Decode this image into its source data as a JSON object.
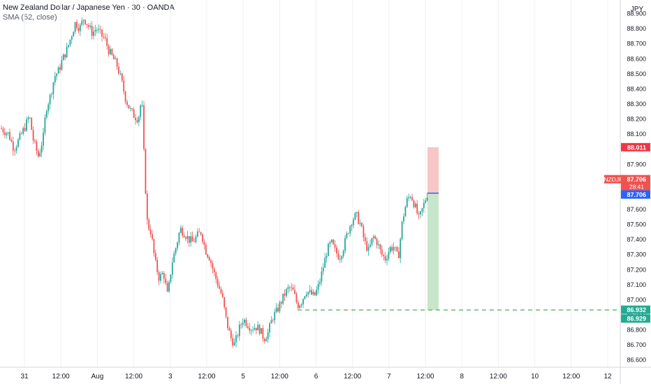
{
  "header": {
    "title": "New Zealand Dollar / Japanese Yen · 30 · OANDA",
    "indicator": "SMA (52, close)"
  },
  "chart_data": {
    "type": "candlestick",
    "currency": "JPY",
    "symbol": "NZDJPY",
    "ylim": [
      86.55,
      88.97
    ],
    "y_ticks": [
      "88.900",
      "88.800",
      "88.700",
      "88.600",
      "88.500",
      "88.400",
      "88.300",
      "88.200",
      "88.100",
      "88.000",
      "87.900",
      "87.800",
      "87.700",
      "87.600",
      "87.500",
      "87.400",
      "87.300",
      "87.200",
      "87.100",
      "87.000",
      "86.900",
      "86.800",
      "86.700",
      "86.600"
    ],
    "x_ticks": [
      "31",
      "12:00",
      "Aug",
      "12:00",
      "3",
      "12:00",
      "5",
      "12:00",
      "6",
      "12:00",
      "7",
      "12:00",
      "8",
      "12:00",
      "10",
      "12:00",
      "12"
    ],
    "price_labels": {
      "last": "87.706",
      "countdown": "28:41",
      "entry": "87.706",
      "stop": "88.011",
      "target_a": "86.932",
      "target_b": "86.929"
    },
    "position": {
      "entry": 87.706,
      "stop": 88.011,
      "target": 86.93,
      "type": "short"
    },
    "colors": {
      "up": "#26a69a",
      "down": "#ef5350",
      "stop_fill": "#f7c6c5",
      "target_fill": "#c8e6c9",
      "entry_line": "#2962ff",
      "target_line": "#4caf50",
      "last_label": "#ef5350"
    },
    "path": [
      [
        0,
        88.14
      ],
      [
        12,
        88.1
      ],
      [
        20,
        88.0
      ],
      [
        28,
        88.07
      ],
      [
        36,
        88.15
      ],
      [
        42,
        88.22
      ],
      [
        48,
        88.05
      ],
      [
        55,
        87.95
      ],
      [
        62,
        88.08
      ],
      [
        66,
        88.27
      ],
      [
        72,
        88.35
      ],
      [
        78,
        88.48
      ],
      [
        84,
        88.52
      ],
      [
        90,
        88.6
      ],
      [
        96,
        88.66
      ],
      [
        102,
        88.75
      ],
      [
        108,
        88.84
      ],
      [
        114,
        88.8
      ],
      [
        120,
        88.87
      ],
      [
        126,
        88.82
      ],
      [
        132,
        88.77
      ],
      [
        138,
        88.8
      ],
      [
        144,
        88.76
      ],
      [
        150,
        88.73
      ],
      [
        156,
        88.65
      ],
      [
        162,
        88.6
      ],
      [
        168,
        88.55
      ],
      [
        174,
        88.45
      ],
      [
        180,
        88.33
      ],
      [
        186,
        88.26
      ],
      [
        192,
        88.22
      ],
      [
        198,
        88.2
      ],
      [
        203,
        88.34
      ],
      [
        207,
        87.85
      ],
      [
        211,
        87.5
      ],
      [
        216,
        87.45
      ],
      [
        222,
        87.25
      ],
      [
        228,
        87.14
      ],
      [
        234,
        87.18
      ],
      [
        240,
        87.02
      ],
      [
        246,
        87.24
      ],
      [
        252,
        87.35
      ],
      [
        258,
        87.47
      ],
      [
        264,
        87.44
      ],
      [
        270,
        87.4
      ],
      [
        276,
        87.38
      ],
      [
        282,
        87.42
      ],
      [
        288,
        87.45
      ],
      [
        294,
        87.33
      ],
      [
        300,
        87.28
      ],
      [
        306,
        87.18
      ],
      [
        312,
        87.1
      ],
      [
        318,
        87.02
      ],
      [
        324,
        86.86
      ],
      [
        330,
        86.75
      ],
      [
        336,
        86.7
      ],
      [
        342,
        86.8
      ],
      [
        348,
        86.87
      ],
      [
        354,
        86.84
      ],
      [
        360,
        86.81
      ],
      [
        366,
        86.82
      ],
      [
        372,
        86.8
      ],
      [
        378,
        86.74
      ],
      [
        384,
        86.78
      ],
      [
        390,
        86.88
      ],
      [
        396,
        86.92
      ],
      [
        402,
        86.98
      ],
      [
        408,
        87.04
      ],
      [
        414,
        87.08
      ],
      [
        420,
        87.05
      ],
      [
        426,
        86.96
      ],
      [
        432,
        86.99
      ],
      [
        438,
        87.06
      ],
      [
        444,
        87.04
      ],
      [
        450,
        87.02
      ],
      [
        456,
        87.09
      ],
      [
        462,
        87.2
      ],
      [
        468,
        87.32
      ],
      [
        474,
        87.38
      ],
      [
        480,
        87.32
      ],
      [
        486,
        87.28
      ],
      [
        492,
        87.35
      ],
      [
        498,
        87.45
      ],
      [
        504,
        87.53
      ],
      [
        510,
        87.56
      ],
      [
        516,
        87.5
      ],
      [
        522,
        87.38
      ],
      [
        528,
        87.32
      ],
      [
        534,
        87.42
      ],
      [
        540,
        87.38
      ],
      [
        546,
        87.3
      ],
      [
        552,
        87.27
      ],
      [
        558,
        87.34
      ],
      [
        564,
        87.35
      ],
      [
        570,
        87.27
      ],
      [
        576,
        87.52
      ],
      [
        582,
        87.65
      ],
      [
        588,
        87.7
      ],
      [
        594,
        87.62
      ],
      [
        600,
        87.53
      ],
      [
        606,
        87.62
      ],
      [
        612,
        87.706
      ]
    ]
  }
}
